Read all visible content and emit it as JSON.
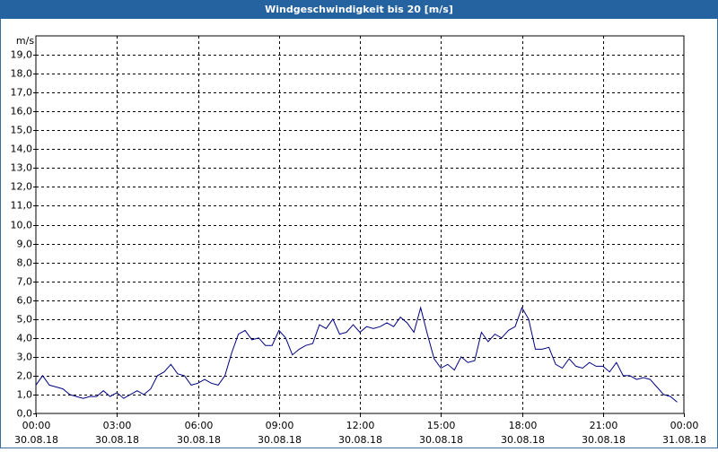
{
  "chart_data": {
    "type": "line",
    "title": "Windgeschwindigkeit bis 20 [m/s]",
    "y_unit": "m/s",
    "x": [
      0,
      0.25,
      0.5,
      0.75,
      1,
      1.25,
      1.5,
      1.75,
      2,
      2.25,
      2.5,
      2.75,
      3,
      3.25,
      3.5,
      3.75,
      4,
      4.25,
      4.5,
      4.75,
      5,
      5.25,
      5.5,
      5.75,
      6,
      6.25,
      6.5,
      6.75,
      7,
      7.25,
      7.5,
      7.75,
      8,
      8.25,
      8.5,
      8.75,
      9,
      9.25,
      9.5,
      9.75,
      10,
      10.25,
      10.5,
      10.75,
      11,
      11.25,
      11.5,
      11.75,
      12,
      12.25,
      12.5,
      12.75,
      13,
      13.25,
      13.5,
      13.75,
      14,
      14.25,
      14.5,
      14.75,
      15,
      15.25,
      15.5,
      15.75,
      16,
      16.25,
      16.5,
      16.75,
      17,
      17.25,
      17.5,
      17.75,
      18,
      18.25,
      18.5,
      18.75,
      19,
      19.25,
      19.5,
      19.75,
      20,
      20.25,
      20.5,
      20.75,
      21,
      21.25,
      21.5,
      21.75,
      22,
      22.25,
      22.5,
      22.75,
      23,
      23.25,
      23.5,
      23.75
    ],
    "values": [
      1.5,
      2.0,
      1.5,
      1.4,
      1.3,
      1.0,
      0.9,
      0.8,
      0.9,
      0.9,
      1.2,
      0.9,
      1.1,
      0.8,
      1.0,
      1.2,
      1.0,
      1.3,
      2.0,
      2.2,
      2.6,
      2.1,
      2.0,
      1.5,
      1.6,
      1.8,
      1.6,
      1.5,
      2.0,
      3.2,
      4.2,
      4.4,
      3.9,
      4.0,
      3.6,
      3.6,
      4.4,
      4.0,
      3.1,
      3.4,
      3.6,
      3.7,
      4.7,
      4.5,
      5.0,
      4.2,
      4.3,
      4.7,
      4.3,
      4.6,
      4.5,
      4.6,
      4.8,
      4.6,
      5.1,
      4.8,
      4.3,
      5.6,
      4.2,
      2.9,
      2.4,
      2.6,
      2.3,
      3.0,
      2.7,
      2.8,
      4.3,
      3.8,
      4.2,
      4.0,
      4.4,
      4.6,
      5.6,
      5.0,
      3.4,
      3.4,
      3.5,
      2.6,
      2.4,
      2.9,
      2.5,
      2.4,
      2.7,
      2.5,
      2.5,
      2.2,
      2.7,
      2.0,
      2.0,
      1.8,
      1.9,
      1.8,
      1.4,
      1.0,
      0.9,
      0.6
    ],
    "color": "#000080",
    "xlim": [
      0,
      24
    ],
    "xticks": [
      {
        "value": 0,
        "label": "00:00",
        "date": "30.08.18"
      },
      {
        "value": 3,
        "label": "03:00",
        "date": "30.08.18"
      },
      {
        "value": 6,
        "label": "06:00",
        "date": "30.08.18"
      },
      {
        "value": 9,
        "label": "09:00",
        "date": "30.08.18"
      },
      {
        "value": 12,
        "label": "12:00",
        "date": "30.08.18"
      },
      {
        "value": 15,
        "label": "15:00",
        "date": "30.08.18"
      },
      {
        "value": 18,
        "label": "18:00",
        "date": "30.08.18"
      },
      {
        "value": 21,
        "label": "21:00",
        "date": "30.08.18"
      },
      {
        "value": 24,
        "label": "00:00",
        "date": "31.08.18"
      }
    ],
    "ylim": [
      0,
      20
    ],
    "yticks": [
      {
        "value": 0,
        "label": "0,0"
      },
      {
        "value": 1,
        "label": "1,0"
      },
      {
        "value": 2,
        "label": "2,0"
      },
      {
        "value": 3,
        "label": "3,0"
      },
      {
        "value": 4,
        "label": "4,0"
      },
      {
        "value": 5,
        "label": "5,0"
      },
      {
        "value": 6,
        "label": "6,0"
      },
      {
        "value": 7,
        "label": "7,0"
      },
      {
        "value": 8,
        "label": "8,0"
      },
      {
        "value": 9,
        "label": "9,0"
      },
      {
        "value": 10,
        "label": "10,0"
      },
      {
        "value": 11,
        "label": "11,0"
      },
      {
        "value": 12,
        "label": "12,0"
      },
      {
        "value": 13,
        "label": "13,0"
      },
      {
        "value": 14,
        "label": "14,0"
      },
      {
        "value": 15,
        "label": "15,0"
      },
      {
        "value": 16,
        "label": "16,0"
      },
      {
        "value": 17,
        "label": "17,0"
      },
      {
        "value": 18,
        "label": "18,0"
      },
      {
        "value": 19,
        "label": "19,0"
      }
    ],
    "grid": true
  }
}
